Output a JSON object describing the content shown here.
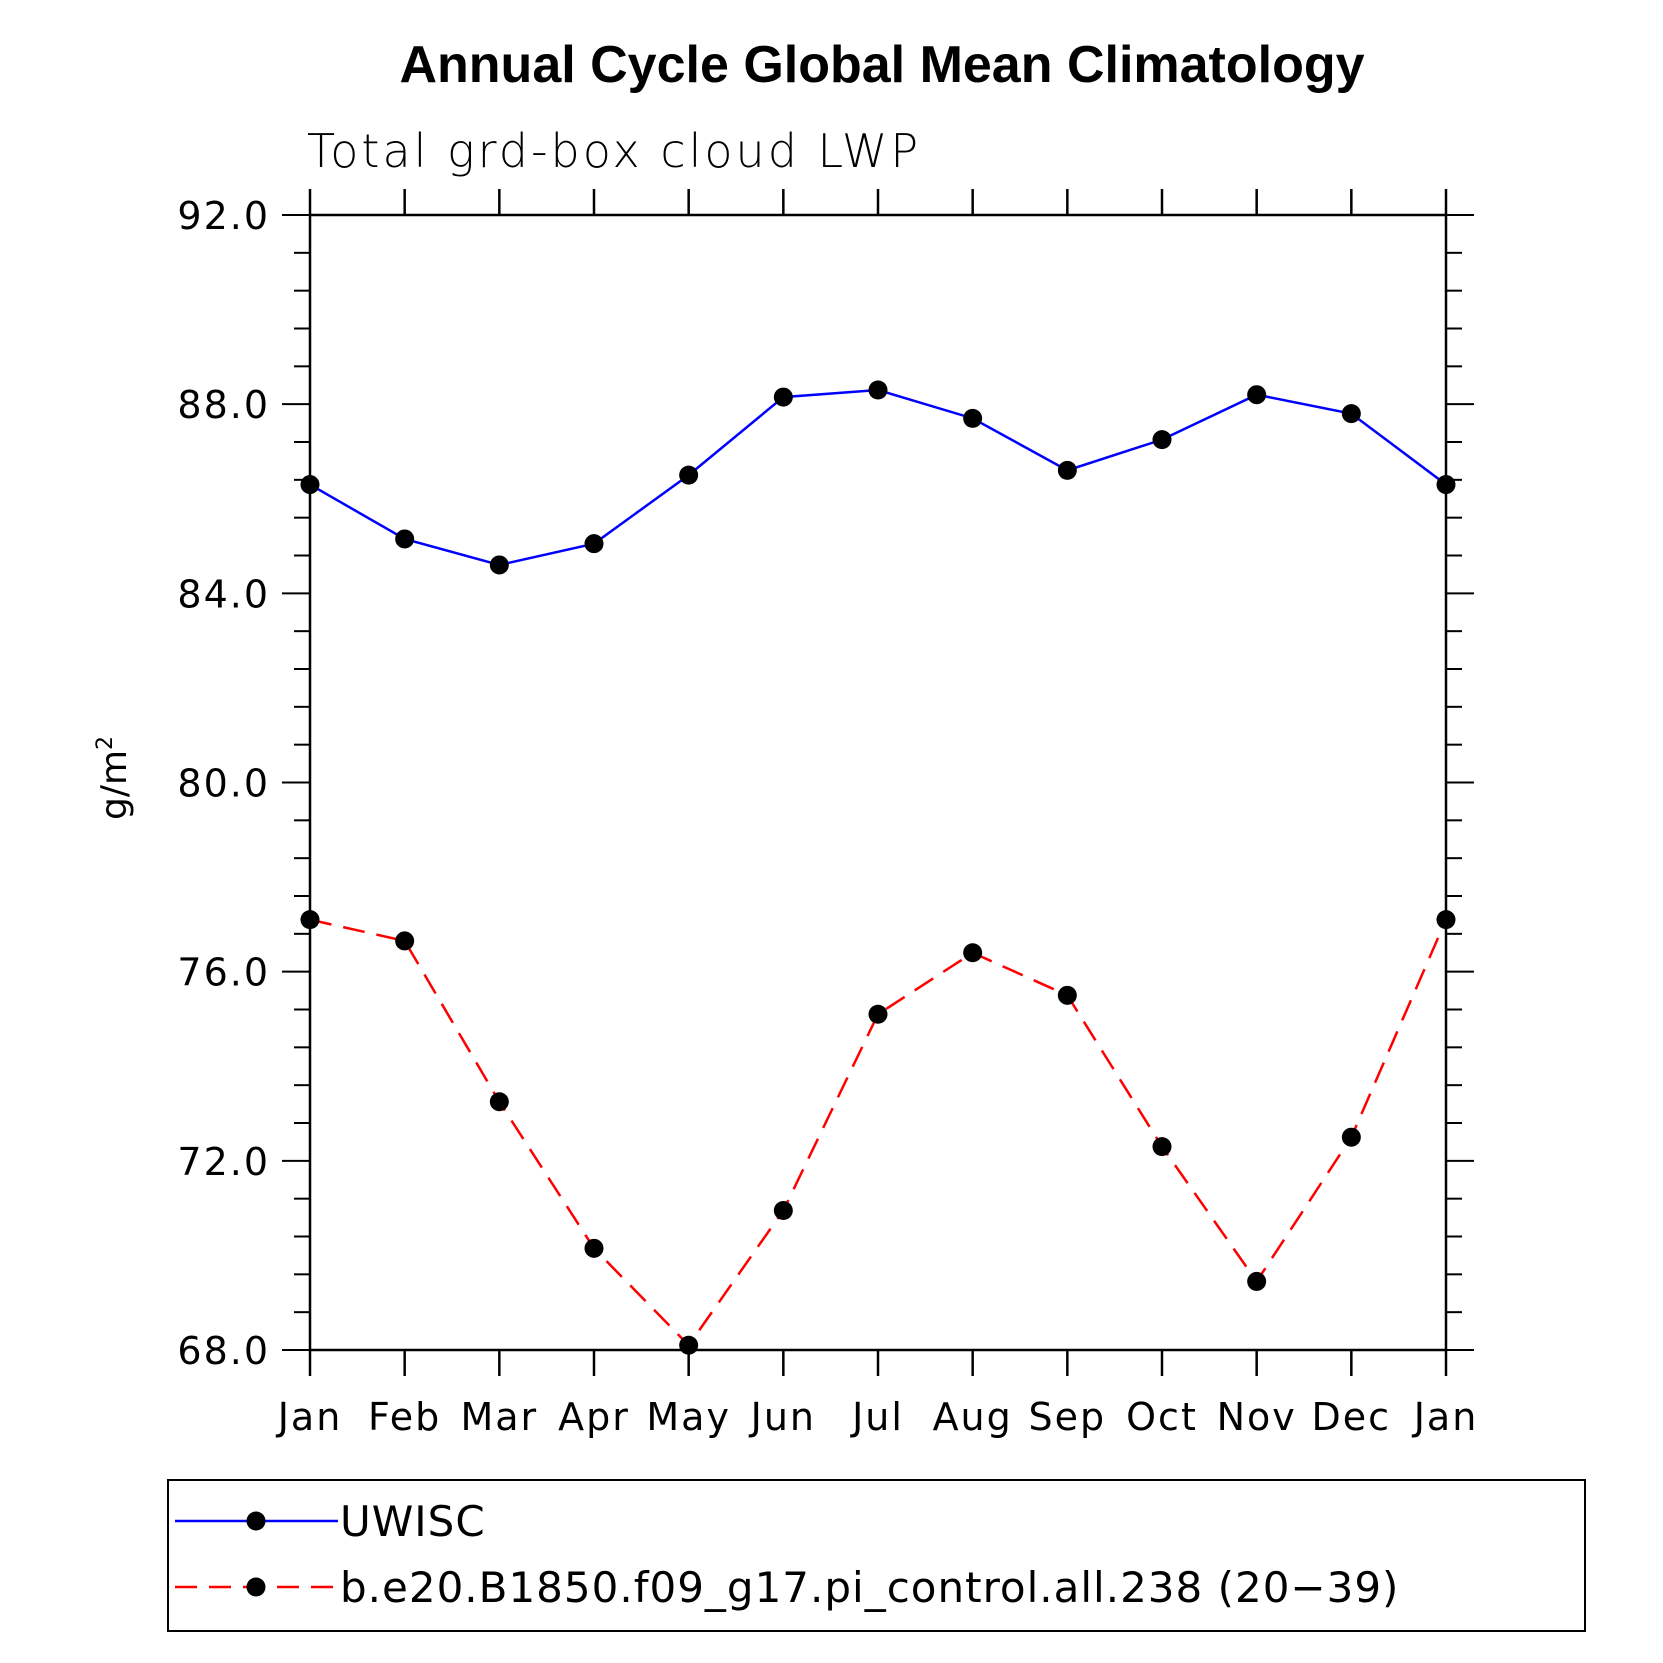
{
  "chart_data": {
    "type": "line",
    "title": "Annual Cycle Global Mean Climatology",
    "subtitle": "Total grd-box cloud LWP",
    "xlabel": "",
    "ylabel": "g/m",
    "ylabel_superscript": "2",
    "categories": [
      "Jan",
      "Feb",
      "Mar",
      "Apr",
      "May",
      "Jun",
      "Jul",
      "Aug",
      "Sep",
      "Oct",
      "Nov",
      "Dec",
      "Jan"
    ],
    "ylim": [
      68,
      92
    ],
    "yticks": [
      "68.0",
      "72.0",
      "76.0",
      "80.0",
      "84.0",
      "88.0",
      "92.0"
    ],
    "yticks_values": [
      68,
      72,
      76,
      80,
      84,
      88,
      92
    ],
    "legend_position": "bottom",
    "grid": false,
    "series": [
      {
        "name": "UWISC",
        "color": "#0000ff",
        "dash": "solid",
        "marker": "filled-circle",
        "values": [
          86.3,
          85.15,
          84.6,
          85.05,
          86.5,
          88.15,
          88.3,
          87.7,
          86.6,
          87.25,
          88.2,
          87.8,
          86.3
        ]
      },
      {
        "name": "b.e20.B1850.f09_g17.pi_control.all.238 (20−39)",
        "color": "#ff0000",
        "dash": "dashed",
        "marker": "filled-circle",
        "values": [
          77.1,
          76.65,
          73.25,
          70.15,
          68.1,
          70.95,
          75.1,
          76.4,
          75.5,
          72.3,
          69.45,
          72.5,
          77.1
        ]
      }
    ]
  }
}
